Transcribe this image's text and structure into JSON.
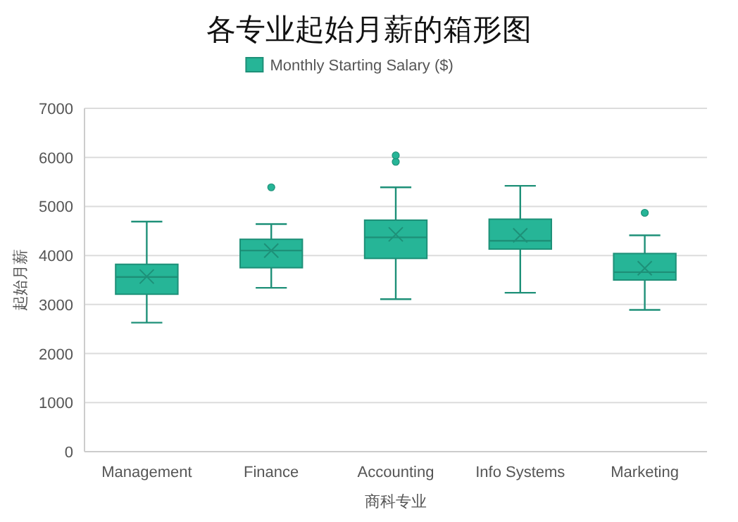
{
  "chart_data": {
    "type": "box",
    "title": "各专业起始月薪的箱形图",
    "xlabel": "商科专业",
    "ylabel": "起始月薪",
    "categories": [
      "Management",
      "Finance",
      "Accounting",
      "Info Systems",
      "Marketing"
    ],
    "series": [
      {
        "name": "Monthly Starting Salary ($)",
        "color": "#26b597",
        "boxes": [
          {
            "low": 2630,
            "q1": 3210,
            "median": 3560,
            "q3": 3820,
            "high": 4690,
            "mean": 3570
          },
          {
            "low": 3340,
            "q1": 3750,
            "median": 4100,
            "q3": 4330,
            "high": 4640,
            "mean": 4100,
            "outliers": [
              5390
            ]
          },
          {
            "low": 3110,
            "q1": 3940,
            "median": 4370,
            "q3": 4720,
            "high": 5390,
            "mean": 4430,
            "outliers": [
              5910,
              6040
            ]
          },
          {
            "low": 3240,
            "q1": 4130,
            "median": 4300,
            "q3": 4740,
            "high": 5420,
            "mean": 4410
          },
          {
            "low": 2890,
            "q1": 3500,
            "median": 3660,
            "q3": 4040,
            "high": 4410,
            "mean": 3740,
            "outliers": [
              4870
            ]
          }
        ]
      }
    ],
    "ylim": [
      0,
      7000
    ],
    "yticks": [
      0,
      1000,
      2000,
      3000,
      4000,
      5000,
      6000,
      7000
    ],
    "grid": "y",
    "legend": "top"
  }
}
